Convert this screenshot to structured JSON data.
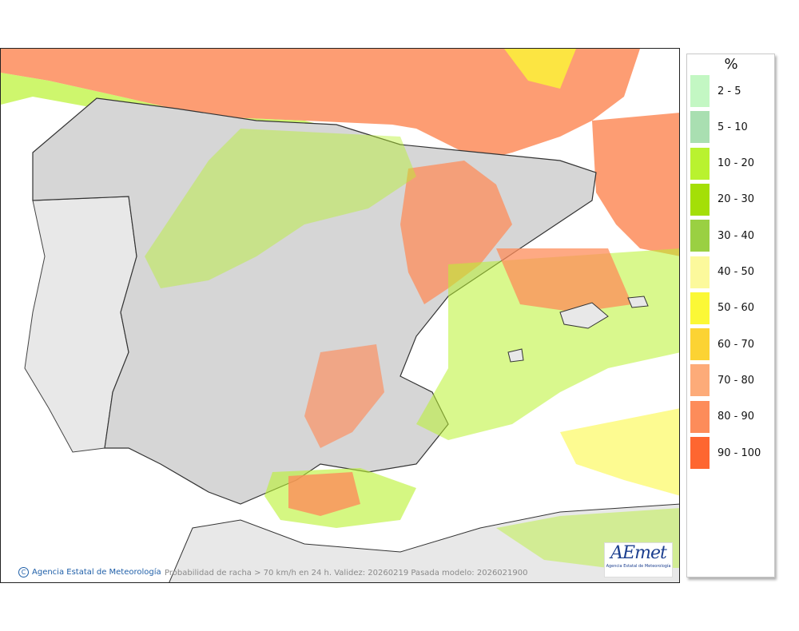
{
  "legend": {
    "title": "%",
    "items": [
      {
        "label": "2 - 5",
        "color": "#c3f7c3"
      },
      {
        "label": "5 - 10",
        "color": "#a9dfb1"
      },
      {
        "label": "10 - 20",
        "color": "#b9f22f"
      },
      {
        "label": "20 - 30",
        "color": "#a4df07"
      },
      {
        "label": "30 - 40",
        "color": "#9ad042"
      },
      {
        "label": "40 - 50",
        "color": "#fcf99c"
      },
      {
        "label": "50 - 60",
        "color": "#fbf836"
      },
      {
        "label": "60 - 70",
        "color": "#fcd333"
      },
      {
        "label": "70 - 80",
        "color": "#fdab79"
      },
      {
        "label": "80 - 90",
        "color": "#fd8c5a"
      },
      {
        "label": "90 - 100",
        "color": "#fe6630"
      }
    ]
  },
  "map": {
    "credit": "Agencia Estatal de Meteorología",
    "credit_symbol": "C",
    "caption": "Probabilidad de racha > 70 km/h en 24 h. Validez: 20260219 Pasada modelo: 2026021900",
    "logo_mark": "AEmet",
    "logo_sub": "Agencia Estatal de Meteorología"
  }
}
